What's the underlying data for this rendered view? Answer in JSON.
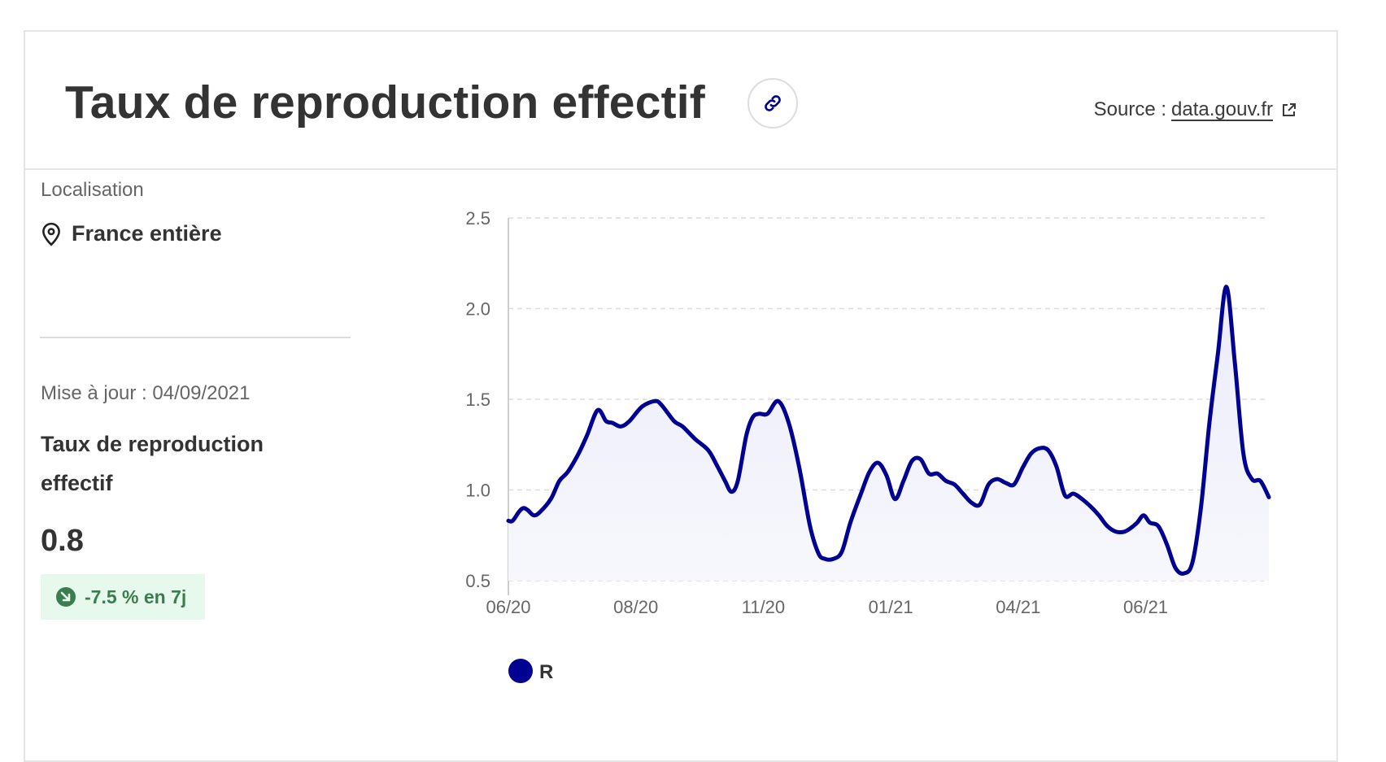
{
  "header": {
    "title": "Taux de reproduction effectif",
    "source_label": "Source :",
    "source_link": "data.gouv.fr"
  },
  "location": {
    "label": "Localisation",
    "value": "France entière"
  },
  "metric": {
    "update_label": "Mise à jour : 04/09/2021",
    "title": "Taux de reproduction effectif",
    "value": "0.8",
    "trend": "-7.5 % en 7j"
  },
  "colors": {
    "series": "#000091",
    "trend_badge_bg": "#e6f9ec",
    "trend_text": "#3a7d4f"
  },
  "icons": {
    "link": "link-icon",
    "external": "external-link-icon",
    "location": "map-pin-icon",
    "trend": "trend-down-arrow-icon"
  },
  "chart_data": {
    "type": "area",
    "series": [
      {
        "name": "R",
        "x": [
          0,
          2,
          5,
          7,
          9,
          12,
          15,
          20,
          24,
          28,
          33,
          37,
          42,
          46,
          49,
          53,
          57,
          63,
          69,
          72,
          78,
          82,
          88,
          94,
          98,
          102,
          105,
          108,
          112,
          115,
          118,
          122,
          127,
          132,
          137,
          142,
          146,
          149,
          153,
          157,
          161,
          166,
          170,
          174,
          178,
          182,
          186,
          190,
          194,
          198,
          202,
          206,
          210,
          214,
          218,
          222,
          226,
          230,
          234,
          238,
          242,
          246,
          250,
          254,
          258,
          262,
          266,
          270,
          274,
          278,
          282,
          286,
          290,
          293,
          296,
          299,
          302,
          306,
          310,
          314,
          318,
          322,
          326,
          330,
          334,
          338,
          342,
          346,
          350,
          354,
          358
        ],
        "values": [
          0.83,
          0.83,
          0.88,
          0.9,
          0.89,
          0.86,
          0.88,
          0.95,
          1.05,
          1.1,
          1.2,
          1.3,
          1.44,
          1.38,
          1.37,
          1.35,
          1.38,
          1.46,
          1.49,
          1.47,
          1.38,
          1.35,
          1.28,
          1.22,
          1.14,
          1.05,
          0.99,
          1.05,
          1.3,
          1.4,
          1.42,
          1.42,
          1.49,
          1.37,
          1.12,
          0.8,
          0.65,
          0.62,
          0.62,
          0.66,
          0.82,
          0.98,
          1.1,
          1.15,
          1.08,
          0.95,
          1.05,
          1.16,
          1.17,
          1.09,
          1.09,
          1.05,
          1.03,
          0.98,
          0.93,
          0.92,
          1.03,
          1.06,
          1.04,
          1.03,
          1.12,
          1.2,
          1.23,
          1.22,
          1.13,
          0.97,
          0.98,
          0.95,
          0.91,
          0.86,
          0.8,
          0.77,
          0.77,
          0.79,
          0.82,
          0.86,
          0.82,
          0.8,
          0.7,
          0.57,
          0.54,
          0.6,
          0.9,
          1.37,
          1.75,
          2.12,
          1.7,
          1.2,
          1.06,
          1.05,
          0.96
        ]
      }
    ],
    "x_ticks": [
      {
        "day": 0,
        "label": "06/20"
      },
      {
        "day": 60,
        "label": "08/20"
      },
      {
        "day": 120,
        "label": "11/20"
      },
      {
        "day": 180,
        "label": "01/21"
      },
      {
        "day": 240,
        "label": "04/21"
      },
      {
        "day": 300,
        "label": "06/21"
      }
    ],
    "y_ticks": [
      "0.5",
      "1.0",
      "1.5",
      "2.0",
      "2.5"
    ],
    "xlim": [
      0,
      358
    ],
    "ylim": [
      0.5,
      2.5
    ],
    "grid": "horizontal dashed",
    "legend": "bottom-left"
  }
}
